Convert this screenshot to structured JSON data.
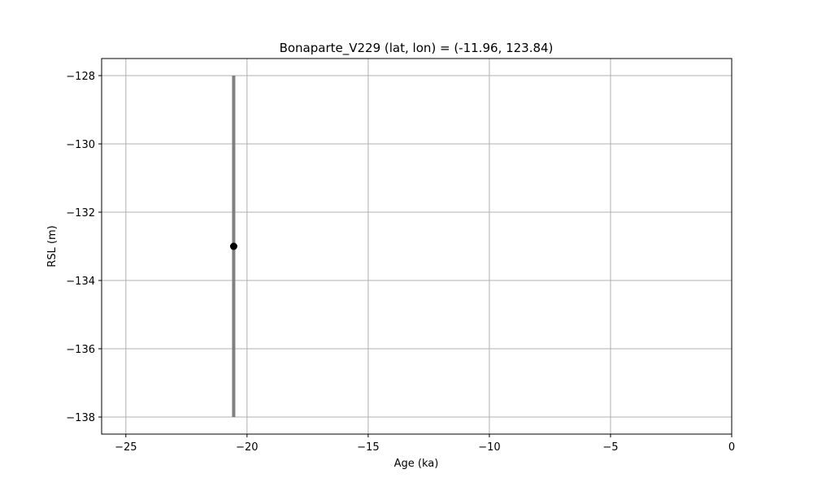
{
  "chart_data": {
    "type": "scatter",
    "title": "Bonaparte_V229 (lat, lon) = (-11.96, 123.84)",
    "xlabel": "Age (ka)",
    "ylabel": "RSL (m)",
    "xlim": [
      -26,
      0
    ],
    "ylim": [
      -138.5,
      -127.5
    ],
    "grid": true,
    "x_ticks": [
      -25,
      -20,
      -15,
      -10,
      -5,
      0
    ],
    "y_ticks": [
      -128,
      -130,
      -132,
      -134,
      -136,
      -138
    ],
    "x_tick_labels": [
      "−25",
      "−20",
      "−15",
      "−10",
      "−5",
      "0"
    ],
    "y_tick_labels": [
      "−128",
      "−130",
      "−132",
      "−134",
      "−136",
      "−138"
    ],
    "points": [
      {
        "x": -20.55,
        "y": -133,
        "y_err_low": -138,
        "y_err_high": -128,
        "color": "#000000",
        "error_color": "#808080"
      }
    ]
  }
}
